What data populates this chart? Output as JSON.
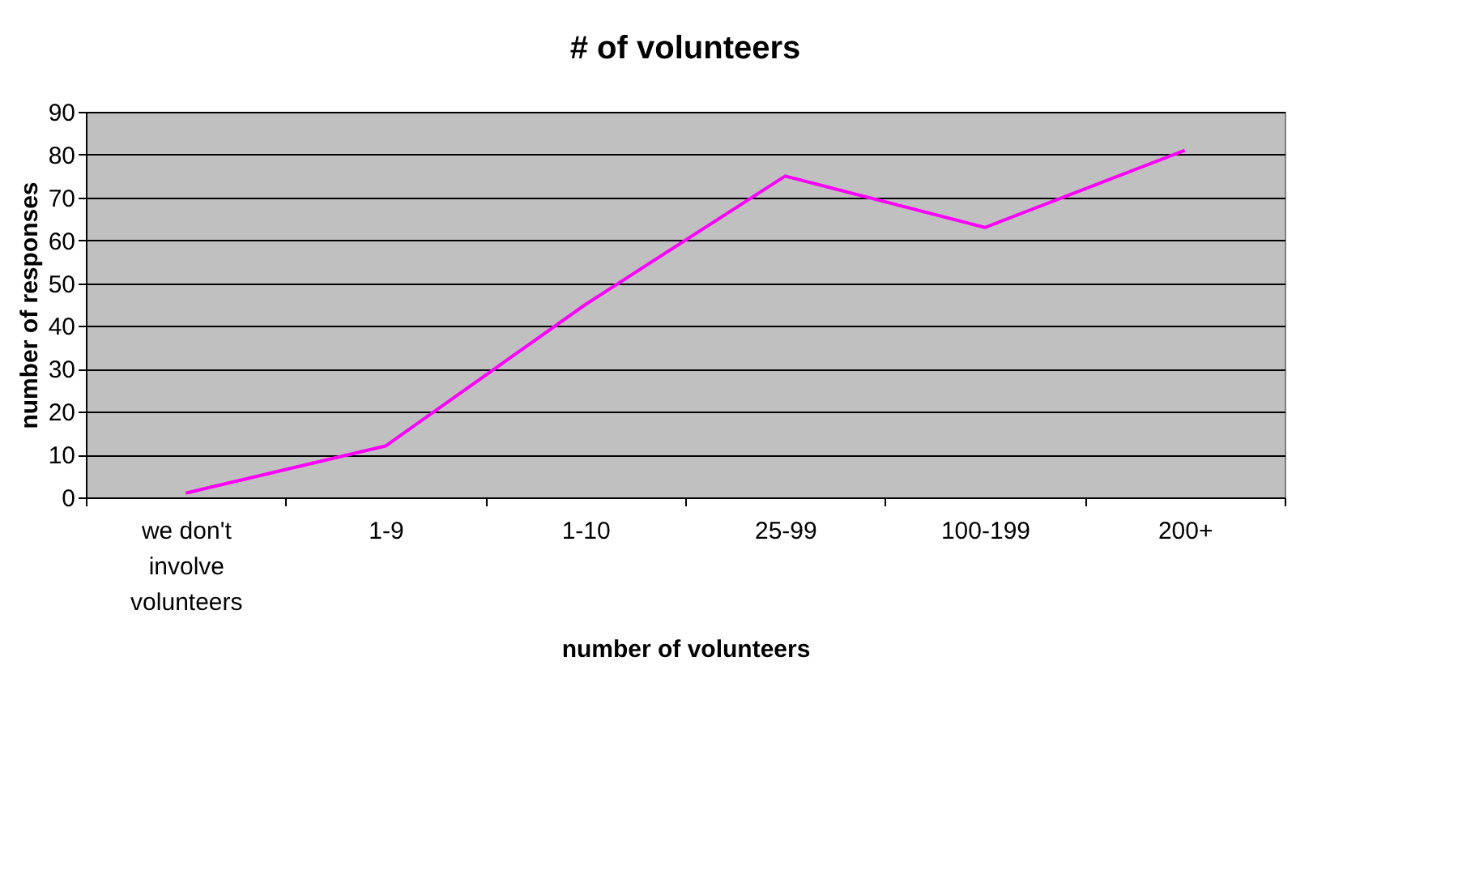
{
  "chart_data": {
    "type": "line",
    "title": "# of volunteers",
    "xlabel": "number of volunteers",
    "ylabel": "number of responses",
    "categories": [
      "we don't involve volunteers",
      "1-9",
      "1-10",
      "25-99",
      "100-199",
      "200+"
    ],
    "series": [
      {
        "color": "#ff00ff",
        "values": [
          1,
          12,
          45,
          75,
          63,
          81
        ]
      }
    ],
    "ylim": [
      0,
      90
    ],
    "yticks": [
      0,
      10,
      20,
      30,
      40,
      50,
      60,
      70,
      80,
      90
    ],
    "grid": "y",
    "legend": false,
    "marker": "none",
    "line_style": "solid"
  }
}
